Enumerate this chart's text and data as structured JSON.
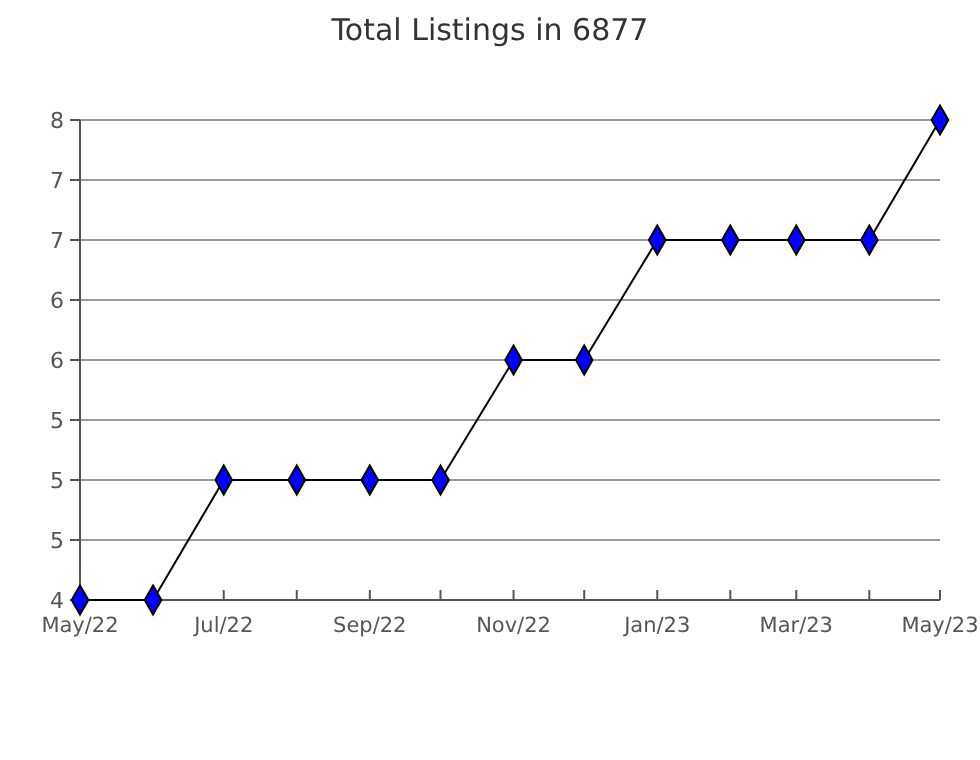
{
  "chart_data": {
    "type": "line",
    "title": "Total Listings in 6877",
    "x": [
      "2022-05",
      "2022-06",
      "2022-07",
      "2022-08",
      "2022-09",
      "2022-10",
      "2022-11",
      "2022-12",
      "2023-01",
      "2023-02",
      "2023-03",
      "2023-04",
      "2023-05"
    ],
    "series": [
      {
        "color": "#0000ff",
        "values": [
          4,
          4,
          5,
          5,
          5,
          5,
          6,
          6,
          7,
          7,
          7,
          7,
          8
        ]
      }
    ],
    "xlim": [
      "2022-05",
      "2023-05"
    ],
    "xticks": [
      {
        "value": "2022-05",
        "label": "May/22"
      },
      {
        "value": "2022-06",
        "label": null
      },
      {
        "value": "2022-07",
        "label": "Jul/22"
      },
      {
        "value": "2022-08",
        "label": null
      },
      {
        "value": "2022-09",
        "label": "Sep/22"
      },
      {
        "value": "2022-10",
        "label": null
      },
      {
        "value": "2022-11",
        "label": "Nov/22"
      },
      {
        "value": "2022-12",
        "label": null
      },
      {
        "value": "2023-01",
        "label": "Jan/23"
      },
      {
        "value": "2023-02",
        "label": null
      },
      {
        "value": "2023-03",
        "label": "Mar/23"
      },
      {
        "value": "2023-04",
        "label": null
      },
      {
        "value": "2023-05",
        "label": "May/23"
      }
    ],
    "ylim": [
      4,
      8
    ],
    "yticks": [
      4,
      {
        "value": 4.5,
        "label": "5"
      },
      5,
      {
        "value": 5.5,
        "label": "5"
      },
      6,
      {
        "value": 6.5,
        "label": "6"
      },
      7,
      {
        "value": 7.5,
        "label": "7"
      },
      8
    ],
    "grid": "y",
    "marker": "diamond",
    "line_style": "solid"
  }
}
